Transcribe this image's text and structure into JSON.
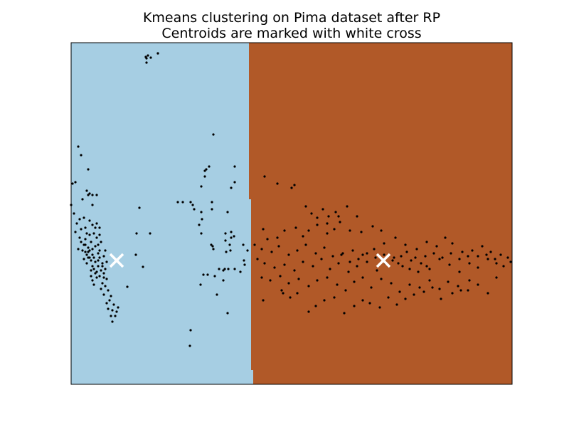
{
  "chart_data": {
    "type": "scatter",
    "title": "Kmeans clustering on Pima dataset after RP",
    "subtitle": "Centroids are marked with white cross",
    "xlabel": "",
    "ylabel": "",
    "x_ticks": [],
    "y_ticks": [],
    "xlim": [
      0,
      620
    ],
    "ylim": [
      0,
      480
    ],
    "grid": false,
    "legend": "none",
    "regions": [
      {
        "name": "cluster-0",
        "color": "#a6cee3",
        "boundary": [
          [
            250,
            480
          ],
          [
            250,
            260
          ],
          [
            253,
            260
          ],
          [
            253,
            20
          ],
          [
            256,
            20
          ],
          [
            256,
            0
          ],
          [
            0,
            0
          ],
          [
            0,
            480
          ]
        ]
      },
      {
        "name": "cluster-1",
        "color": "#b15928",
        "boundary": [
          [
            250,
            480
          ],
          [
            250,
            260
          ],
          [
            253,
            260
          ],
          [
            253,
            20
          ],
          [
            256,
            20
          ],
          [
            256,
            0
          ],
          [
            620,
            0
          ],
          [
            620,
            480
          ]
        ]
      }
    ],
    "centroids": [
      {
        "x": 64,
        "y": 174,
        "color": "#ffffff"
      },
      {
        "x": 439,
        "y": 174,
        "color": "#ffffff"
      }
    ],
    "point_color": "#000000",
    "points": [
      [
        105,
        460
      ],
      [
        108,
        462
      ],
      [
        112,
        459
      ],
      [
        106,
        452
      ],
      [
        122,
        465
      ],
      [
        10,
        334
      ],
      [
        14,
        322
      ],
      [
        24,
        302
      ],
      [
        6,
        284
      ],
      [
        2,
        282
      ],
      [
        22,
        272
      ],
      [
        26,
        268
      ],
      [
        24,
        266
      ],
      [
        30,
        266
      ],
      [
        16,
        260
      ],
      [
        36,
        266
      ],
      [
        30,
        252
      ],
      [
        0,
        252
      ],
      [
        4,
        240
      ],
      [
        12,
        232
      ],
      [
        18,
        234
      ],
      [
        8,
        226
      ],
      [
        14,
        218
      ],
      [
        20,
        220
      ],
      [
        6,
        214
      ],
      [
        26,
        230
      ],
      [
        30,
        224
      ],
      [
        36,
        226
      ],
      [
        40,
        220
      ],
      [
        22,
        212
      ],
      [
        32,
        212
      ],
      [
        12,
        206
      ],
      [
        36,
        206
      ],
      [
        40,
        210
      ],
      [
        28,
        200
      ],
      [
        18,
        196
      ],
      [
        24,
        192
      ],
      [
        10,
        190
      ],
      [
        26,
        188
      ],
      [
        30,
        190
      ],
      [
        20,
        186
      ],
      [
        34,
        194
      ],
      [
        42,
        200
      ],
      [
        22,
        182
      ],
      [
        30,
        182
      ],
      [
        38,
        184
      ],
      [
        26,
        178
      ],
      [
        40,
        178
      ],
      [
        46,
        180
      ],
      [
        28,
        174
      ],
      [
        34,
        172
      ],
      [
        22,
        170
      ],
      [
        38,
        166
      ],
      [
        44,
        170
      ],
      [
        30,
        166
      ],
      [
        36,
        158
      ],
      [
        42,
        160
      ],
      [
        48,
        162
      ],
      [
        28,
        160
      ],
      [
        40,
        152
      ],
      [
        46,
        150
      ],
      [
        50,
        148
      ],
      [
        36,
        150
      ],
      [
        44,
        142
      ],
      [
        30,
        146
      ],
      [
        32,
        140
      ],
      [
        42,
        134
      ],
      [
        48,
        138
      ],
      [
        52,
        132
      ],
      [
        46,
        126
      ],
      [
        56,
        124
      ],
      [
        54,
        118
      ],
      [
        50,
        114
      ],
      [
        60,
        112
      ],
      [
        58,
        104
      ],
      [
        64,
        102
      ],
      [
        66,
        108
      ],
      [
        52,
        106
      ],
      [
        56,
        96
      ],
      [
        62,
        96
      ],
      [
        58,
        88
      ],
      [
        24,
        178
      ],
      [
        18,
        176
      ],
      [
        32,
        178
      ],
      [
        20,
        196
      ],
      [
        14,
        200
      ],
      [
        38,
        196
      ],
      [
        26,
        210
      ],
      [
        34,
        220
      ],
      [
        20,
        204
      ],
      [
        38,
        174
      ],
      [
        44,
        166
      ],
      [
        28,
        152
      ],
      [
        34,
        156
      ],
      [
        50,
        172
      ],
      [
        48,
        188
      ],
      [
        24,
        186
      ],
      [
        16,
        188
      ],
      [
        40,
        188
      ],
      [
        32,
        162
      ],
      [
        46,
        156
      ],
      [
        105,
        460
      ],
      [
        106,
        458
      ],
      [
        122,
        465
      ],
      [
        96,
        248
      ],
      [
        111,
        212
      ],
      [
        92,
        212
      ],
      [
        91,
        182
      ],
      [
        79,
        137
      ],
      [
        101,
        165
      ],
      [
        168,
        76
      ],
      [
        150,
        256
      ],
      [
        200,
        351
      ],
      [
        168,
        256
      ],
      [
        173,
        246
      ],
      [
        157,
        256
      ],
      [
        171,
        252
      ],
      [
        188,
        292
      ],
      [
        194,
        306
      ],
      [
        183,
        278
      ],
      [
        190,
        302
      ],
      [
        188,
        300
      ],
      [
        230,
        306
      ],
      [
        198,
        246
      ],
      [
        230,
        284
      ],
      [
        225,
        276
      ],
      [
        220,
        242
      ],
      [
        183,
        242
      ],
      [
        198,
        256
      ],
      [
        180,
        224
      ],
      [
        183,
        212
      ],
      [
        184,
        232
      ],
      [
        199,
        194
      ],
      [
        197,
        196
      ],
      [
        217,
        202
      ],
      [
        225,
        206
      ],
      [
        217,
        212
      ],
      [
        225,
        214
      ],
      [
        229,
        208
      ],
      [
        223,
        196
      ],
      [
        242,
        196
      ],
      [
        224,
        188
      ],
      [
        200,
        190
      ],
      [
        216,
        162
      ],
      [
        214,
        160
      ],
      [
        208,
        162
      ],
      [
        221,
        162
      ],
      [
        214,
        146
      ],
      [
        202,
        152
      ],
      [
        192,
        154
      ],
      [
        205,
        126
      ],
      [
        186,
        154
      ],
      [
        182,
        140
      ],
      [
        220,
        100
      ],
      [
        167,
        54
      ],
      [
        218,
        186
      ],
      [
        244,
        168
      ],
      [
        248,
        188
      ],
      [
        243,
        174
      ],
      [
        230,
        162
      ],
      [
        238,
        158
      ],
      [
        272,
        292
      ],
      [
        290,
        282
      ],
      [
        310,
        276
      ],
      [
        314,
        280
      ],
      [
        330,
        250
      ],
      [
        338,
        240
      ],
      [
        346,
        234
      ],
      [
        354,
        246
      ],
      [
        362,
        236
      ],
      [
        372,
        242
      ],
      [
        388,
        250
      ],
      [
        376,
        236
      ],
      [
        360,
        226
      ],
      [
        402,
        236
      ],
      [
        270,
        218
      ],
      [
        276,
        204
      ],
      [
        290,
        206
      ],
      [
        300,
        216
      ],
      [
        316,
        220
      ],
      [
        326,
        208
      ],
      [
        334,
        216
      ],
      [
        346,
        224
      ],
      [
        360,
        212
      ],
      [
        370,
        218
      ],
      [
        378,
        228
      ],
      [
        392,
        216
      ],
      [
        408,
        214
      ],
      [
        424,
        222
      ],
      [
        436,
        216
      ],
      [
        258,
        196
      ],
      [
        268,
        190
      ],
      [
        282,
        186
      ],
      [
        292,
        194
      ],
      [
        306,
        182
      ],
      [
        318,
        188
      ],
      [
        330,
        196
      ],
      [
        344,
        184
      ],
      [
        356,
        192
      ],
      [
        368,
        180
      ],
      [
        382,
        184
      ],
      [
        396,
        188
      ],
      [
        410,
        182
      ],
      [
        426,
        190
      ],
      [
        440,
        198
      ],
      [
        456,
        206
      ],
      [
        470,
        196
      ],
      [
        486,
        190
      ],
      [
        500,
        200
      ],
      [
        514,
        194
      ],
      [
        526,
        206
      ],
      [
        536,
        198
      ],
      [
        550,
        186
      ],
      [
        564,
        188
      ],
      [
        578,
        194
      ],
      [
        590,
        186
      ],
      [
        604,
        182
      ],
      [
        614,
        178
      ],
      [
        262,
        176
      ],
      [
        272,
        170
      ],
      [
        286,
        164
      ],
      [
        300,
        168
      ],
      [
        314,
        160
      ],
      [
        326,
        172
      ],
      [
        340,
        166
      ],
      [
        352,
        176
      ],
      [
        364,
        162
      ],
      [
        376,
        170
      ],
      [
        390,
        158
      ],
      [
        402,
        166
      ],
      [
        416,
        172
      ],
      [
        430,
        160
      ],
      [
        442,
        170
      ],
      [
        454,
        178
      ],
      [
        466,
        166
      ],
      [
        478,
        174
      ],
      [
        492,
        170
      ],
      [
        504,
        162
      ],
      [
        518,
        176
      ],
      [
        532,
        168
      ],
      [
        546,
        158
      ],
      [
        560,
        170
      ],
      [
        572,
        164
      ],
      [
        586,
        176
      ],
      [
        598,
        170
      ],
      [
        608,
        166
      ],
      [
        618,
        172
      ],
      [
        268,
        150
      ],
      [
        280,
        146
      ],
      [
        294,
        152
      ],
      [
        306,
        142
      ],
      [
        320,
        148
      ],
      [
        334,
        138
      ],
      [
        346,
        146
      ],
      [
        360,
        150
      ],
      [
        374,
        140
      ],
      [
        386,
        132
      ],
      [
        398,
        144
      ],
      [
        410,
        150
      ],
      [
        422,
        136
      ],
      [
        436,
        148
      ],
      [
        450,
        142
      ],
      [
        462,
        130
      ],
      [
        476,
        140
      ],
      [
        490,
        136
      ],
      [
        504,
        146
      ],
      [
        518,
        134
      ],
      [
        530,
        144
      ],
      [
        544,
        138
      ],
      [
        558,
        132
      ],
      [
        572,
        140
      ],
      [
        586,
        128
      ],
      [
        598,
        150
      ],
      [
        296,
        132
      ],
      [
        308,
        122
      ],
      [
        318,
        128
      ],
      [
        334,
        102
      ],
      [
        344,
        110
      ],
      [
        356,
        118
      ],
      [
        370,
        122
      ],
      [
        384,
        100
      ],
      [
        398,
        110
      ],
      [
        410,
        118
      ],
      [
        420,
        114
      ],
      [
        434,
        108
      ],
      [
        446,
        122
      ],
      [
        458,
        112
      ],
      [
        470,
        120
      ],
      [
        482,
        126
      ],
      [
        496,
        130
      ],
      [
        508,
        136
      ],
      [
        520,
        120
      ],
      [
        536,
        128
      ],
      [
        548,
        132
      ],
      [
        560,
        146
      ],
      [
        270,
        118
      ],
      [
        298,
        128
      ],
      [
        460,
        170
      ],
      [
        472,
        186
      ],
      [
        484,
        178
      ],
      [
        498,
        180
      ],
      [
        510,
        184
      ],
      [
        522,
        178
      ],
      [
        534,
        184
      ],
      [
        546,
        176
      ],
      [
        558,
        180
      ],
      [
        572,
        180
      ],
      [
        584,
        182
      ],
      [
        596,
        176
      ],
      [
        380,
        182
      ],
      [
        392,
        172
      ],
      [
        404,
        176
      ],
      [
        416,
        184
      ],
      [
        428,
        178
      ],
      [
        440,
        182
      ],
      [
        452,
        174
      ],
      [
        464,
        180
      ],
      [
        476,
        162
      ],
      [
        488,
        158
      ],
      [
        500,
        166
      ]
    ]
  }
}
